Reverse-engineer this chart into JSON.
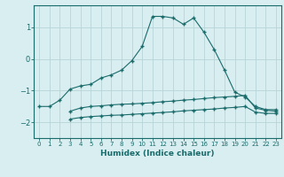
{
  "xlabel": "Humidex (Indice chaleur)",
  "bg_color": "#d8eef0",
  "grid_color": "#b8d4d8",
  "line_color": "#1a6b6b",
  "xlim": [
    -0.5,
    23.5
  ],
  "ylim": [
    -2.5,
    1.7
  ],
  "yticks": [
    -2,
    -1,
    0,
    1
  ],
  "xticks": [
    0,
    1,
    2,
    3,
    4,
    5,
    6,
    7,
    8,
    9,
    10,
    11,
    12,
    13,
    14,
    15,
    16,
    17,
    18,
    19,
    20,
    21,
    22,
    23
  ],
  "line1_x": [
    0,
    1,
    2,
    3,
    4,
    5,
    6,
    7,
    8,
    9,
    10,
    11,
    12,
    13,
    14,
    15,
    16,
    17,
    18,
    19,
    20,
    21,
    22,
    23
  ],
  "line1_y": [
    -1.5,
    -1.5,
    -1.3,
    -0.95,
    -0.85,
    -0.8,
    -0.6,
    -0.5,
    -0.35,
    -0.05,
    0.4,
    1.35,
    1.35,
    1.3,
    1.1,
    1.3,
    0.85,
    0.3,
    -0.35,
    -1.05,
    -1.2,
    -1.5,
    -1.6,
    -1.6
  ],
  "line2_x": [
    3,
    4,
    5,
    6,
    7,
    8,
    9,
    10,
    11,
    12,
    13,
    14,
    15,
    16,
    17,
    18,
    19,
    20,
    21,
    22,
    23
  ],
  "line2_y": [
    -1.65,
    -1.55,
    -1.5,
    -1.48,
    -1.45,
    -1.43,
    -1.42,
    -1.4,
    -1.38,
    -1.35,
    -1.33,
    -1.3,
    -1.28,
    -1.25,
    -1.22,
    -1.2,
    -1.18,
    -1.15,
    -1.55,
    -1.62,
    -1.65
  ],
  "line3_x": [
    3,
    4,
    5,
    6,
    7,
    8,
    9,
    10,
    11,
    12,
    13,
    14,
    15,
    16,
    17,
    18,
    19,
    20,
    21,
    22,
    23
  ],
  "line3_y": [
    -1.9,
    -1.85,
    -1.82,
    -1.8,
    -1.78,
    -1.77,
    -1.75,
    -1.73,
    -1.71,
    -1.69,
    -1.67,
    -1.64,
    -1.62,
    -1.6,
    -1.58,
    -1.55,
    -1.53,
    -1.5,
    -1.68,
    -1.72,
    -1.72
  ]
}
